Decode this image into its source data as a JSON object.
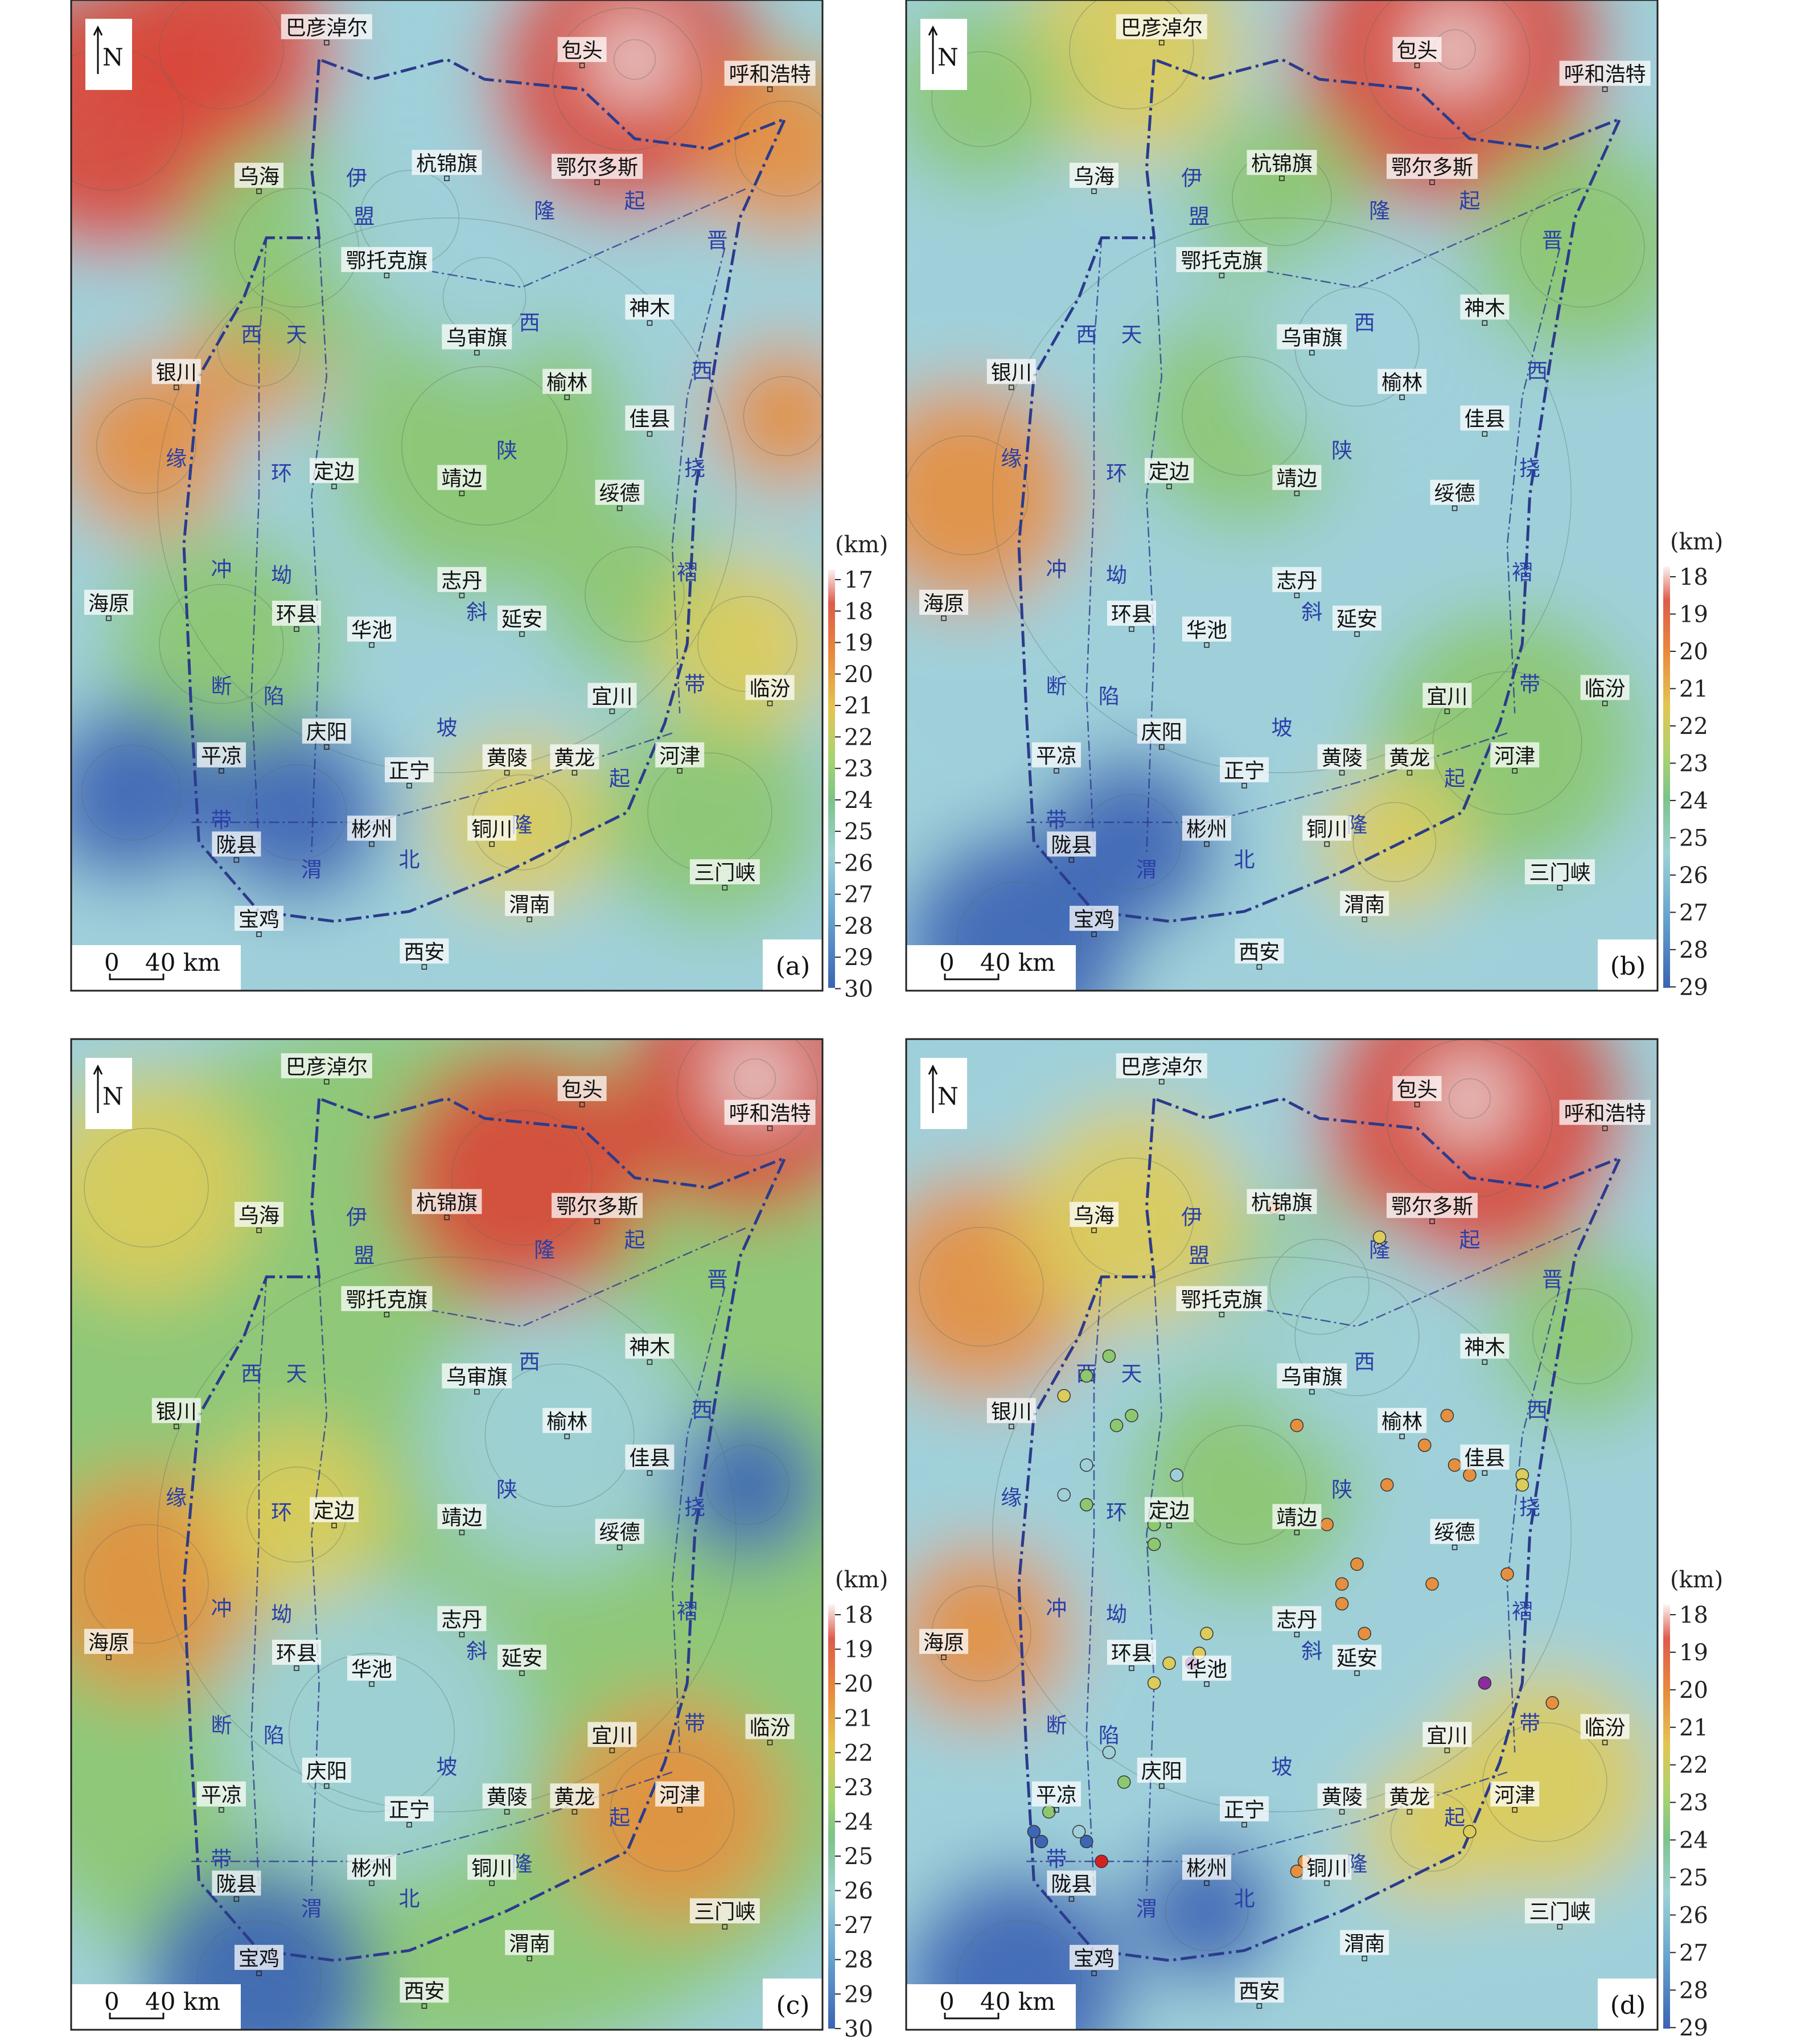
{
  "colors": {
    "boundary": "#2c3b8c",
    "deep_blue": "#3d66b5",
    "light_blue": "#9fd0da",
    "green": "#8cc870",
    "yellow": "#dccc5a",
    "orange": "#e59040",
    "red": "#d9473a",
    "white_peak": "#f4f4f4"
  },
  "unit_label": "(km)",
  "scale_bar": {
    "zero": "0",
    "distance": "40 km"
  },
  "north_label": "N",
  "cities": [
    "巴彦淖尔",
    "包头",
    "呼和浩特",
    "乌海",
    "杭锦旗",
    "鄂尔多斯",
    "鄂托克旗",
    "神木",
    "银川",
    "乌审旗",
    "榆林",
    "佳县",
    "定边",
    "靖边",
    "绥德",
    "海原",
    "志丹",
    "环县",
    "华池",
    "延安",
    "宜川",
    "临汾",
    "庆阳",
    "平凉",
    "正宁",
    "黄陵",
    "黄龙",
    "河津",
    "陇县",
    "彬州",
    "铜川",
    "三门峡",
    "宝鸡",
    "渭南",
    "西安"
  ],
  "structure_labels": [
    "伊",
    "盟",
    "隆",
    "起",
    "西",
    "天",
    "缘",
    "环",
    "冲",
    "坳",
    "断",
    "陷",
    "带",
    "渭",
    "北",
    "陕",
    "斜",
    "坡",
    "晋",
    "挠",
    "褶"
  ],
  "panels": [
    {
      "letter": "(a)",
      "colorbar_ticks": [
        "17",
        "18",
        "19",
        "20",
        "21",
        "22",
        "23",
        "24",
        "25",
        "26",
        "27",
        "28",
        "29",
        "30"
      ]
    },
    {
      "letter": "(b)",
      "colorbar_ticks": [
        "18",
        "19",
        "20",
        "21",
        "22",
        "23",
        "24",
        "25",
        "26",
        "27",
        "28",
        "29"
      ]
    },
    {
      "letter": "(c)",
      "colorbar_ticks": [
        "18",
        "19",
        "20",
        "21",
        "22",
        "23",
        "24",
        "25",
        "26",
        "27",
        "28",
        "29",
        "30"
      ]
    },
    {
      "letter": "(d)",
      "colorbar_ticks": [
        "18",
        "19",
        "20",
        "21",
        "22",
        "23",
        "24",
        "25",
        "26",
        "27",
        "28",
        "29"
      ]
    }
  ]
}
